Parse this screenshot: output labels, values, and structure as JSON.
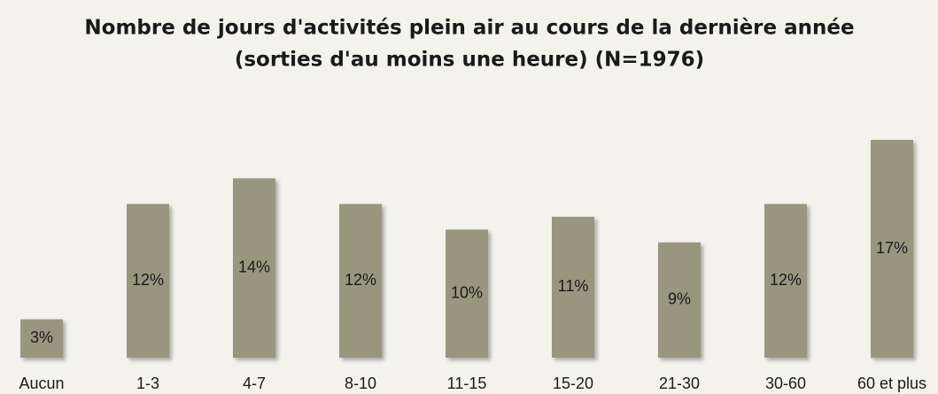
{
  "chart_data": {
    "type": "bar",
    "title": [
      "Nombre de jours d'activités plein air au cours de la dernière année",
      "(sorties d'au moins une heure) (N=1976)"
    ],
    "categories": [
      "Aucun",
      "1-3",
      "4-7",
      "8-10",
      "11-15",
      "15-20",
      "21-30",
      "30-60",
      "60 et plus"
    ],
    "values": [
      3,
      12,
      14,
      12,
      10,
      11,
      9,
      12,
      17
    ],
    "value_labels": [
      "3%",
      "12%",
      "14%",
      "12%",
      "10%",
      "11%",
      "9%",
      "12%",
      "17%"
    ],
    "color": "#999680"
  }
}
